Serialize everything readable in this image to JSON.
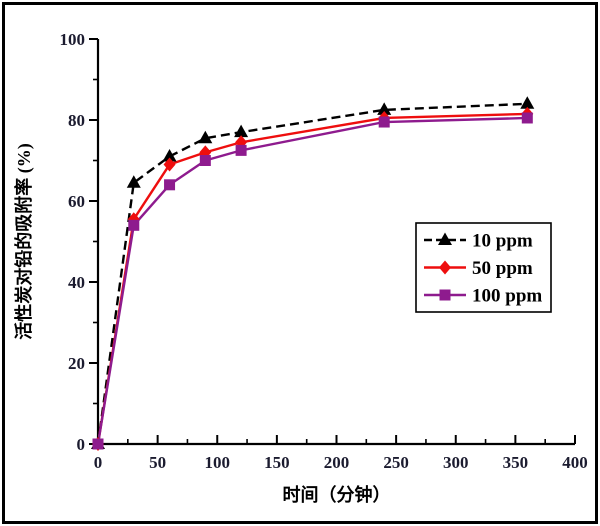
{
  "window": {
    "background": "#ffffff",
    "frame_color": "#000000"
  },
  "chart_data": {
    "type": "line",
    "title": "",
    "xlabel": "时间（分钟）",
    "ylabel": "活性炭对铅的吸附率 (%)",
    "xlim": [
      0,
      400
    ],
    "ylim": [
      0,
      100
    ],
    "x_major_ticks": [
      0,
      50,
      100,
      150,
      200,
      250,
      300,
      350,
      400
    ],
    "x_minor_ticks": [
      25,
      75,
      125,
      175,
      225,
      275,
      325,
      375
    ],
    "y_major_ticks": [
      0,
      20,
      40,
      60,
      80,
      100
    ],
    "y_minor_ticks": [
      10,
      30,
      50,
      70,
      90
    ],
    "grid": false,
    "legend_position": "middle-right",
    "axis_color": "#000000",
    "tick_label_color": "#1b1b2f",
    "axis_title_color": "#000000",
    "x": [
      0,
      30,
      60,
      90,
      120,
      240,
      360
    ],
    "series": [
      {
        "name": "10 ppm",
        "color": "#000000",
        "marker": "triangle",
        "line_style": "dashed",
        "values": [
          0,
          64.5,
          71,
          75.5,
          77,
          82.5,
          84
        ]
      },
      {
        "name": "50 ppm",
        "color": "#ee0e0e",
        "marker": "diamond",
        "line_style": "solid",
        "values": [
          0,
          55.5,
          69,
          72,
          74.5,
          80.5,
          81.5
        ]
      },
      {
        "name": "100 ppm",
        "color": "#8e1b8e",
        "marker": "square",
        "line_style": "solid",
        "values": [
          0,
          54,
          64,
          70,
          72.5,
          79.5,
          80.5
        ]
      }
    ]
  }
}
